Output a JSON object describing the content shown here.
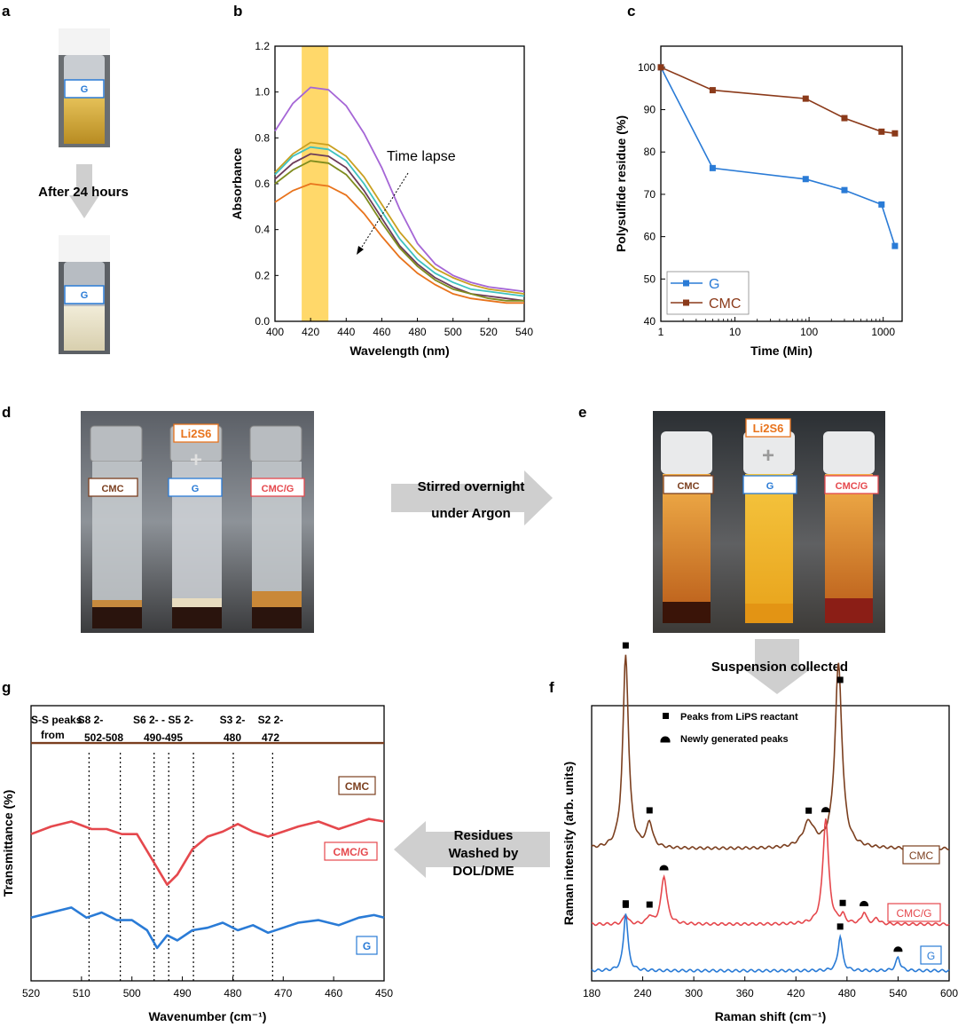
{
  "panels": {
    "a": {
      "label": "a",
      "vial_label": "G",
      "arrow_text": "After 24 hours"
    },
    "b": {
      "label": "b"
    },
    "c": {
      "label": "c"
    },
    "d": {
      "label": "d",
      "top_label": "Li2S6",
      "vials": [
        "CMC",
        "G",
        "CMC/G"
      ]
    },
    "de_arrow": {
      "line1": "Stirred overnight",
      "line2": "under Argon"
    },
    "e": {
      "label": "e",
      "top_label": "Li2S6",
      "vials": [
        "CMC",
        "G",
        "CMC/G"
      ]
    },
    "ef_arrow": {
      "text": "Suspension collected"
    },
    "f": {
      "label": "f"
    },
    "fg_arrow": {
      "line1": "Residues",
      "line2": "Washed by",
      "line3": "DOL/DME"
    },
    "g": {
      "label": "g",
      "sulfur": {
        "header1": "S-S peaks",
        "header2": "from",
        "species": [
          "S8 2-",
          "S6 2- - S5 2-",
          "S3 2-",
          "S2 2-"
        ],
        "ranges": [
          "502-508",
          "490-495",
          "480",
          "472"
        ]
      }
    }
  },
  "colors": {
    "g": "#2a7bd6",
    "cmc": "#7b3f1f",
    "cmc_g": "#e5484d",
    "highlight": "#ffd86a"
  },
  "chart_data": [
    {
      "panel": "b",
      "type": "line",
      "xlabel": "Wavelength (nm)",
      "ylabel": "Absorbance",
      "xlim": [
        400,
        540
      ],
      "ylim": [
        0,
        1.2
      ],
      "xticks": [
        400,
        420,
        440,
        460,
        480,
        500,
        520,
        540
      ],
      "yticks": [
        0.0,
        0.2,
        0.4,
        0.6,
        0.8,
        1.0,
        1.2
      ],
      "highlight_band": [
        415,
        430
      ],
      "annotation": "Time lapse",
      "series": [
        {
          "color": "#a566d6",
          "values": [
            [
              400,
              0.83
            ],
            [
              410,
              0.95
            ],
            [
              420,
              1.02
            ],
            [
              430,
              1.01
            ],
            [
              440,
              0.94
            ],
            [
              450,
              0.82
            ],
            [
              460,
              0.67
            ],
            [
              470,
              0.49
            ],
            [
              480,
              0.34
            ],
            [
              490,
              0.25
            ],
            [
              500,
              0.2
            ],
            [
              510,
              0.17
            ],
            [
              520,
              0.15
            ],
            [
              530,
              0.14
            ],
            [
              540,
              0.13
            ]
          ]
        },
        {
          "color": "#c9a020",
          "values": [
            [
              400,
              0.65
            ],
            [
              410,
              0.73
            ],
            [
              420,
              0.78
            ],
            [
              430,
              0.77
            ],
            [
              440,
              0.72
            ],
            [
              450,
              0.63
            ],
            [
              460,
              0.51
            ],
            [
              470,
              0.39
            ],
            [
              480,
              0.3
            ],
            [
              490,
              0.23
            ],
            [
              500,
              0.19
            ],
            [
              510,
              0.16
            ],
            [
              520,
              0.14
            ],
            [
              530,
              0.13
            ],
            [
              540,
              0.12
            ]
          ]
        },
        {
          "color": "#3fc2c0",
          "values": [
            [
              400,
              0.64
            ],
            [
              410,
              0.72
            ],
            [
              420,
              0.76
            ],
            [
              430,
              0.75
            ],
            [
              440,
              0.7
            ],
            [
              450,
              0.6
            ],
            [
              460,
              0.48
            ],
            [
              470,
              0.36
            ],
            [
              480,
              0.27
            ],
            [
              490,
              0.21
            ],
            [
              500,
              0.17
            ],
            [
              510,
              0.14
            ],
            [
              520,
              0.13
            ],
            [
              530,
              0.12
            ],
            [
              540,
              0.11
            ]
          ]
        },
        {
          "color": "#6d3c5a",
          "values": [
            [
              400,
              0.62
            ],
            [
              410,
              0.69
            ],
            [
              420,
              0.73
            ],
            [
              430,
              0.72
            ],
            [
              440,
              0.67
            ],
            [
              450,
              0.57
            ],
            [
              460,
              0.45
            ],
            [
              470,
              0.33
            ],
            [
              480,
              0.25
            ],
            [
              490,
              0.19
            ],
            [
              500,
              0.15
            ],
            [
              510,
              0.12
            ],
            [
              520,
              0.11
            ],
            [
              530,
              0.1
            ],
            [
              540,
              0.09
            ]
          ]
        },
        {
          "color": "#7f8c1e",
          "values": [
            [
              400,
              0.6
            ],
            [
              410,
              0.66
            ],
            [
              420,
              0.7
            ],
            [
              430,
              0.69
            ],
            [
              440,
              0.64
            ],
            [
              450,
              0.55
            ],
            [
              460,
              0.43
            ],
            [
              470,
              0.32
            ],
            [
              480,
              0.24
            ],
            [
              490,
              0.18
            ],
            [
              500,
              0.14
            ],
            [
              510,
              0.12
            ],
            [
              520,
              0.1
            ],
            [
              530,
              0.09
            ],
            [
              540,
              0.09
            ]
          ]
        },
        {
          "color": "#e8731c",
          "values": [
            [
              400,
              0.52
            ],
            [
              410,
              0.57
            ],
            [
              420,
              0.6
            ],
            [
              430,
              0.59
            ],
            [
              440,
              0.55
            ],
            [
              450,
              0.47
            ],
            [
              460,
              0.37
            ],
            [
              470,
              0.28
            ],
            [
              480,
              0.21
            ],
            [
              490,
              0.16
            ],
            [
              500,
              0.12
            ],
            [
              510,
              0.1
            ],
            [
              520,
              0.09
            ],
            [
              530,
              0.08
            ],
            [
              540,
              0.08
            ]
          ]
        }
      ]
    },
    {
      "panel": "c",
      "type": "line",
      "xlabel": "Time (Min)",
      "ylabel": "Polysulfide residue (%)",
      "xscale": "log",
      "xlim": [
        1,
        1800
      ],
      "ylim": [
        40,
        105
      ],
      "xticks": [
        1,
        10,
        100,
        1000
      ],
      "yticks": [
        40,
        50,
        60,
        70,
        80,
        90,
        100
      ],
      "legend_position": "bottom-left",
      "series": [
        {
          "name": "G",
          "color": "#2a7bd6",
          "x": [
            1,
            5,
            90,
            300,
            950,
            1440
          ],
          "values": [
            100,
            76.2,
            73.6,
            71.0,
            67.6,
            57.8
          ]
        },
        {
          "name": "CMC",
          "color": "#8b3a1a",
          "x": [
            1,
            5,
            90,
            300,
            950,
            1440
          ],
          "values": [
            100,
            94.6,
            92.6,
            88.0,
            84.8,
            84.4
          ]
        }
      ]
    },
    {
      "panel": "f",
      "type": "line",
      "xlabel": "Raman shift (cm⁻¹)",
      "ylabel": "Raman intensity (arb. units)",
      "xlim": [
        180,
        600
      ],
      "xticks": [
        180,
        240,
        300,
        360,
        420,
        480,
        540,
        600
      ],
      "legend": [
        "Peaks from LiPS reactant",
        "Newly generated peaks"
      ],
      "series": [
        {
          "name": "CMC",
          "color": "#7b3f1f",
          "offset": 0.55,
          "baseline_level": 0.05,
          "peaks": [
            [
              220,
              1.0,
              4
            ],
            [
              248,
              0.13,
              4
            ],
            [
              435,
              0.13,
              8
            ],
            [
              470,
              0.95,
              5
            ]
          ],
          "markers_reactant": [
            220,
            248,
            435,
            472
          ],
          "markers_new": []
        },
        {
          "name": "CMC/G",
          "color": "#e5484d",
          "offset": 0.18,
          "baseline_level": 0.03,
          "peaks": [
            [
              220,
              0.05,
              3
            ],
            [
              248,
              0.04,
              3
            ],
            [
              265,
              0.25,
              4
            ],
            [
              455,
              0.55,
              4
            ],
            [
              475,
              0.04,
              3
            ],
            [
              500,
              0.06,
              3
            ],
            [
              515,
              0.03,
              3
            ]
          ],
          "markers_reactant": [
            220,
            248,
            475
          ],
          "markers_new": [
            265,
            455,
            500
          ]
        },
        {
          "name": "G",
          "color": "#2a7bd6",
          "offset": 0.0,
          "baseline_level": 0.02,
          "peaks": [
            [
              220,
              0.3,
              3
            ],
            [
              472,
              0.18,
              3
            ],
            [
              540,
              0.07,
              3
            ]
          ],
          "markers_reactant": [
            220,
            472
          ],
          "markers_new": [
            540
          ]
        }
      ]
    },
    {
      "panel": "g",
      "type": "line",
      "xlabel": "Wavenumber (cm⁻¹)",
      "ylabel": "Transmittance (%)",
      "xlim": [
        520,
        450
      ],
      "xticks": [
        520,
        510,
        500,
        490,
        480,
        470,
        460,
        450
      ],
      "reference_lines": [
        508.5,
        502.3,
        495.6,
        492.7,
        487.8,
        479.9,
        472.1
      ],
      "series": [
        {
          "name": "CMC",
          "color": "#7b3f1f",
          "values": [
            [
              520,
              0.94
            ],
            [
              450,
              0.94
            ]
          ]
        },
        {
          "name": "CMC/G",
          "color": "#e5484d",
          "values": [
            [
              520,
              0.58
            ],
            [
              516,
              0.61
            ],
            [
              512,
              0.63
            ],
            [
              508,
              0.6
            ],
            [
              505,
              0.6
            ],
            [
              502,
              0.58
            ],
            [
              499,
              0.58
            ],
            [
              496,
              0.48
            ],
            [
              493,
              0.38
            ],
            [
              491,
              0.42
            ],
            [
              488,
              0.52
            ],
            [
              485,
              0.57
            ],
            [
              482,
              0.59
            ],
            [
              479,
              0.62
            ],
            [
              476,
              0.59
            ],
            [
              473,
              0.57
            ],
            [
              470,
              0.59
            ],
            [
              467,
              0.61
            ],
            [
              463,
              0.63
            ],
            [
              459,
              0.6
            ],
            [
              456,
              0.62
            ],
            [
              453,
              0.64
            ],
            [
              450,
              0.63
            ]
          ]
        },
        {
          "name": "G",
          "color": "#2a7bd6",
          "values": [
            [
              520,
              0.25
            ],
            [
              516,
              0.27
            ],
            [
              512,
              0.29
            ],
            [
              509,
              0.25
            ],
            [
              506,
              0.27
            ],
            [
              503,
              0.24
            ],
            [
              500,
              0.24
            ],
            [
              497,
              0.2
            ],
            [
              495,
              0.13
            ],
            [
              493,
              0.18
            ],
            [
              491,
              0.16
            ],
            [
              488,
              0.2
            ],
            [
              485,
              0.21
            ],
            [
              482,
              0.23
            ],
            [
              479,
              0.2
            ],
            [
              476,
              0.22
            ],
            [
              473,
              0.19
            ],
            [
              470,
              0.21
            ],
            [
              467,
              0.23
            ],
            [
              463,
              0.24
            ],
            [
              459,
              0.22
            ],
            [
              455,
              0.25
            ],
            [
              452,
              0.26
            ],
            [
              450,
              0.25
            ]
          ]
        }
      ]
    }
  ]
}
